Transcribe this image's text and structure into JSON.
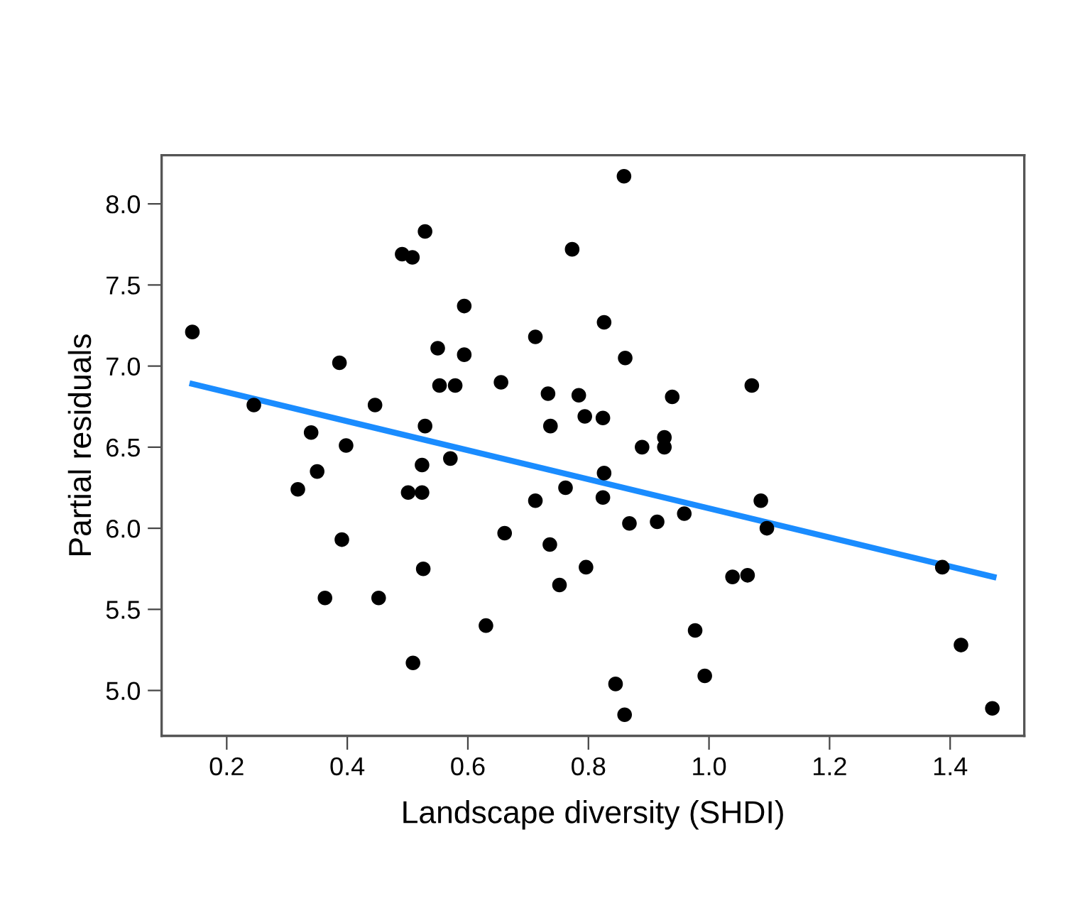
{
  "chart_data": {
    "type": "scatter",
    "xlabel": "Landscape diversity (SHDI)",
    "ylabel": "Partial residuals",
    "xlim": [
      0.092,
      1.523
    ],
    "ylim": [
      4.72,
      8.3
    ],
    "xticks": [
      {
        "value": 0.2,
        "label": "0.2"
      },
      {
        "value": 0.4,
        "label": "0.4"
      },
      {
        "value": 0.6,
        "label": "0.6"
      },
      {
        "value": 0.8,
        "label": "0.8"
      },
      {
        "value": 1.0,
        "label": "1.0"
      },
      {
        "value": 1.2,
        "label": "1.2"
      },
      {
        "value": 1.4,
        "label": "1.4"
      }
    ],
    "yticks": [
      {
        "value": 5.0,
        "label": "5.0"
      },
      {
        "value": 5.5,
        "label": "5.5"
      },
      {
        "value": 6.0,
        "label": "6.0"
      },
      {
        "value": 6.5,
        "label": "6.5"
      },
      {
        "value": 7.0,
        "label": "7.0"
      },
      {
        "value": 7.5,
        "label": "7.5"
      },
      {
        "value": 8.0,
        "label": "8.0"
      }
    ],
    "grid": false,
    "legend": false,
    "series": [
      {
        "color": "#000000",
        "marker": "circle",
        "x": [
          0.143,
          0.245,
          0.34,
          0.387,
          0.446,
          0.491,
          0.508,
          0.529,
          0.594,
          0.55,
          0.594,
          0.553,
          0.579,
          0.529,
          0.398,
          0.35,
          0.318,
          0.524,
          0.571,
          0.501,
          0.524,
          0.391,
          0.526,
          0.363,
          0.452,
          0.509,
          0.859,
          0.773,
          0.826,
          0.712,
          0.861,
          0.655,
          0.733,
          0.784,
          0.939,
          1.071,
          0.737,
          0.794,
          0.824,
          0.889,
          0.926,
          0.926,
          0.826,
          0.762,
          0.712,
          0.824,
          1.086,
          1.096,
          0.959,
          0.868,
          0.914,
          0.661,
          0.736,
          0.796,
          0.752,
          1.039,
          1.064,
          0.63,
          0.977,
          0.993,
          0.845,
          0.86,
          1.387,
          1.418,
          1.47
        ],
        "values": [
          7.21,
          6.76,
          6.59,
          7.02,
          6.76,
          7.69,
          7.67,
          7.83,
          7.37,
          7.11,
          7.07,
          6.88,
          6.88,
          6.63,
          6.51,
          6.35,
          6.24,
          6.39,
          6.43,
          6.22,
          6.22,
          5.93,
          5.75,
          5.57,
          5.57,
          5.17,
          8.17,
          7.72,
          7.27,
          7.18,
          7.05,
          6.9,
          6.83,
          6.82,
          6.81,
          6.88,
          6.63,
          6.69,
          6.68,
          6.5,
          6.56,
          6.5,
          6.34,
          6.25,
          6.17,
          6.19,
          6.17,
          6.0,
          6.09,
          6.03,
          6.04,
          5.97,
          5.9,
          5.76,
          5.65,
          5.7,
          5.71,
          5.4,
          5.37,
          5.09,
          5.04,
          4.85,
          5.76,
          5.28,
          4.89
        ]
      },
      {
        "type": "line",
        "color": "#1a8cff",
        "line_style": "solid",
        "marker": "none",
        "x": [
          0.143,
          1.472
        ],
        "values": [
          6.89,
          5.7
        ]
      }
    ]
  }
}
